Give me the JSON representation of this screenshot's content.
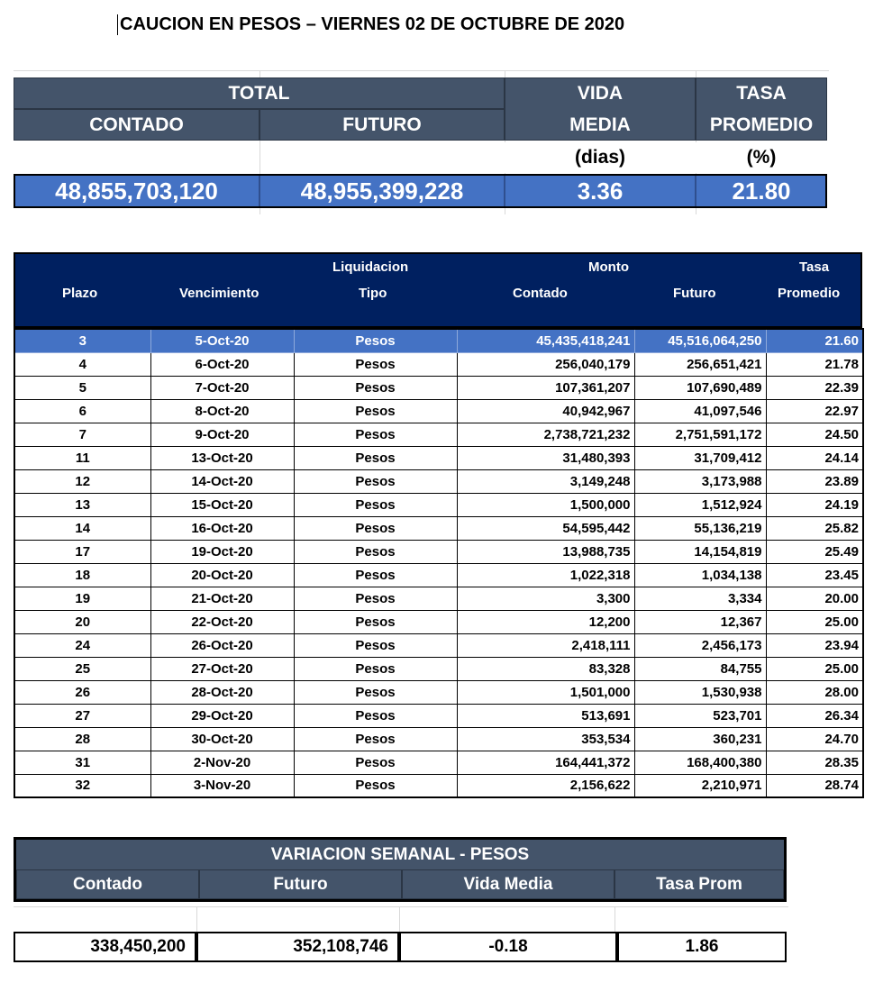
{
  "title": "CAUCION EN PESOS – VIERNES 02 DE OCTUBRE DE 2020",
  "summary": {
    "total_label": "TOTAL",
    "contado_label": "CONTADO",
    "futuro_label": "FUTURO",
    "vida_label_1": "VIDA",
    "vida_label_2": "MEDIA",
    "tasa_label_1": "TASA",
    "tasa_label_2": "PROMEDIO",
    "dias_unit": "(dias)",
    "pct_unit": "(%)",
    "contado": "48,855,703,120",
    "futuro": "48,955,399,228",
    "vida_media": "3.36",
    "tasa_promedio": "21.80"
  },
  "main": {
    "headers": {
      "plazo": "Plazo",
      "vencimiento": "Vencimiento",
      "liquidacion": "Liquidacion",
      "tipo": "Tipo",
      "monto": "Monto",
      "contado": "Contado",
      "futuro": "Futuro",
      "tasa": "Tasa",
      "promedio": "Promedio"
    },
    "rows": [
      [
        "3",
        "5-Oct-20",
        "Pesos",
        "45,435,418,241",
        "45,516,064,250",
        "21.60"
      ],
      [
        "4",
        "6-Oct-20",
        "Pesos",
        "256,040,179",
        "256,651,421",
        "21.78"
      ],
      [
        "5",
        "7-Oct-20",
        "Pesos",
        "107,361,207",
        "107,690,489",
        "22.39"
      ],
      [
        "6",
        "8-Oct-20",
        "Pesos",
        "40,942,967",
        "41,097,546",
        "22.97"
      ],
      [
        "7",
        "9-Oct-20",
        "Pesos",
        "2,738,721,232",
        "2,751,591,172",
        "24.50"
      ],
      [
        "11",
        "13-Oct-20",
        "Pesos",
        "31,480,393",
        "31,709,412",
        "24.14"
      ],
      [
        "12",
        "14-Oct-20",
        "Pesos",
        "3,149,248",
        "3,173,988",
        "23.89"
      ],
      [
        "13",
        "15-Oct-20",
        "Pesos",
        "1,500,000",
        "1,512,924",
        "24.19"
      ],
      [
        "14",
        "16-Oct-20",
        "Pesos",
        "54,595,442",
        "55,136,219",
        "25.82"
      ],
      [
        "17",
        "19-Oct-20",
        "Pesos",
        "13,988,735",
        "14,154,819",
        "25.49"
      ],
      [
        "18",
        "20-Oct-20",
        "Pesos",
        "1,022,318",
        "1,034,138",
        "23.45"
      ],
      [
        "19",
        "21-Oct-20",
        "Pesos",
        "3,300",
        "3,334",
        "20.00"
      ],
      [
        "20",
        "22-Oct-20",
        "Pesos",
        "12,200",
        "12,367",
        "25.00"
      ],
      [
        "24",
        "26-Oct-20",
        "Pesos",
        "2,418,111",
        "2,456,173",
        "23.94"
      ],
      [
        "25",
        "27-Oct-20",
        "Pesos",
        "83,328",
        "84,755",
        "25.00"
      ],
      [
        "26",
        "28-Oct-20",
        "Pesos",
        "1,501,000",
        "1,530,938",
        "28.00"
      ],
      [
        "27",
        "29-Oct-20",
        "Pesos",
        "513,691",
        "523,701",
        "26.34"
      ],
      [
        "28",
        "30-Oct-20",
        "Pesos",
        "353,534",
        "360,231",
        "24.70"
      ],
      [
        "31",
        "2-Nov-20",
        "Pesos",
        "164,441,372",
        "168,400,380",
        "28.35"
      ],
      [
        "32",
        "3-Nov-20",
        "Pesos",
        "2,156,622",
        "2,210,971",
        "28.74"
      ]
    ]
  },
  "weekly": {
    "title": "VARIACION SEMANAL - PESOS",
    "headers": [
      "Contado",
      "Futuro",
      "Vida Media",
      "Tasa Prom"
    ],
    "values": [
      "338,450,200",
      "352,108,746",
      "-0.18",
      "1.86"
    ]
  },
  "colors": {
    "header_slate": "#44546a",
    "header_navy": "#002060",
    "highlight_blue": "#4472c4"
  }
}
